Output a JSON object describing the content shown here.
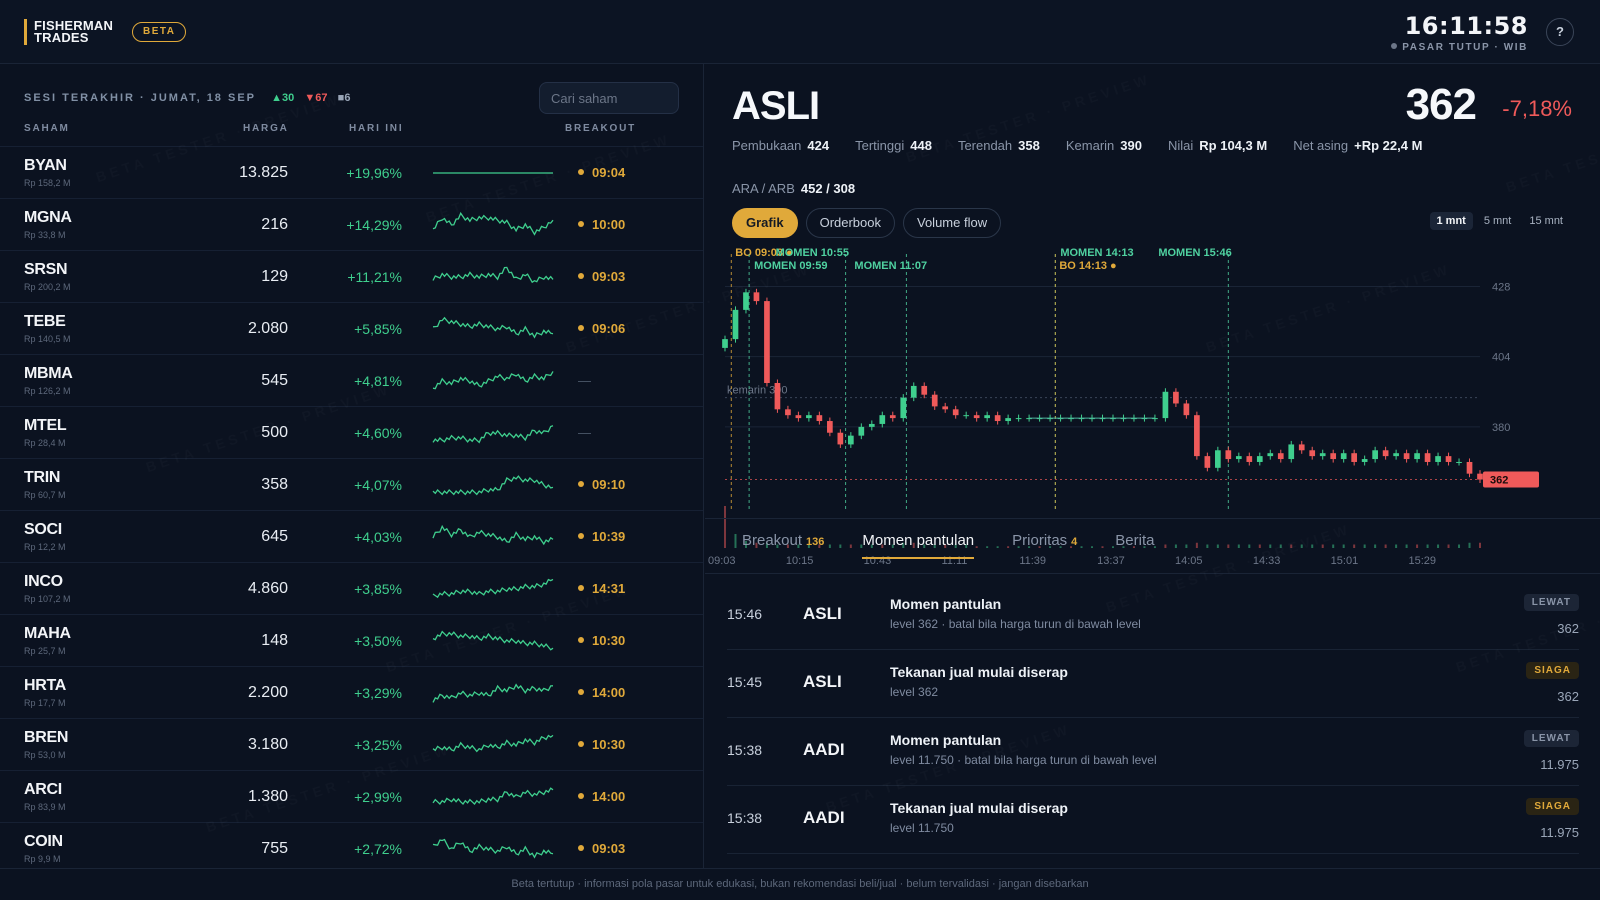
{
  "header": {
    "logo_line1": "FISHERMAN",
    "logo_line2": "TRADES",
    "badge": "BETA",
    "time": "16:11:58",
    "status": "PASAR TUTUP · WIB",
    "help": "?"
  },
  "session": {
    "label": "SESI TERAKHIR · JUMAT, 18 SEP",
    "up_count": "▲30",
    "down_count": "▼67",
    "flat_count": "■6"
  },
  "search": {
    "placeholder": "Cari saham"
  },
  "columns": {
    "stock": "SAHAM",
    "price": "HARGA",
    "today": "HARI INI",
    "breakout": "BREAKOUT"
  },
  "watermark": "BETA TESTER · PREVIEW",
  "stocks": [
    {
      "ticker": "BYAN",
      "value": "Rp 158,2 M",
      "price": "13.825",
      "change": "+19,96%",
      "breakout": "09:04",
      "spark": [
        5,
        5,
        5,
        5,
        5,
        5,
        5,
        5,
        5,
        5,
        5,
        5
      ]
    },
    {
      "ticker": "MGNA",
      "value": "Rp 33,8 M",
      "price": "216",
      "change": "+14,29%",
      "breakout": "10:00",
      "spark": [
        3,
        8,
        5,
        9,
        7,
        8,
        8,
        7,
        6,
        3,
        5,
        2,
        4,
        7
      ]
    },
    {
      "ticker": "SRSN",
      "value": "Rp 200,2 M",
      "price": "129",
      "change": "+11,21%",
      "breakout": "09:03",
      "spark": [
        4,
        6,
        5,
        5,
        6,
        5,
        6,
        5,
        9,
        4,
        6,
        3,
        5,
        4
      ]
    },
    {
      "ticker": "TEBE",
      "value": "Rp 140,5 M",
      "price": "2.080",
      "change": "+5,85%",
      "breakout": "09:06",
      "spark": [
        5,
        9,
        8,
        7,
        6,
        7,
        6,
        5,
        6,
        3,
        5,
        2,
        4,
        3
      ]
    },
    {
      "ticker": "MBMA",
      "value": "Rp 126,2 M",
      "price": "545",
      "change": "+4,81%",
      "breakout": "",
      "spark": [
        2,
        5,
        4,
        6,
        5,
        3,
        5,
        7,
        6,
        8,
        5,
        7,
        6,
        9
      ]
    },
    {
      "ticker": "MTEL",
      "value": "Rp 28,4 M",
      "price": "500",
      "change": "+4,60%",
      "breakout": "",
      "spark": [
        2,
        2,
        3,
        3,
        2,
        2,
        5,
        5,
        4,
        4,
        3,
        6,
        5,
        8
      ]
    },
    {
      "ticker": "TRIN",
      "value": "Rp 60,7 M",
      "price": "358",
      "change": "+4,07%",
      "breakout": "09:10",
      "spark": [
        2,
        2,
        2,
        2,
        2,
        2,
        3,
        3,
        7,
        8,
        7,
        7,
        5,
        4
      ]
    },
    {
      "ticker": "SOCI",
      "value": "Rp 12,2 M",
      "price": "645",
      "change": "+4,03%",
      "breakout": "10:39",
      "spark": [
        5,
        9,
        6,
        8,
        5,
        7,
        6,
        5,
        3,
        6,
        4,
        5,
        3,
        4
      ]
    },
    {
      "ticker": "INCO",
      "value": "Rp 107,2 M",
      "price": "4.860",
      "change": "+3,85%",
      "breakout": "14:31",
      "spark": [
        2,
        3,
        3,
        4,
        4,
        3,
        4,
        4,
        5,
        5,
        6,
        6,
        7,
        9
      ]
    },
    {
      "ticker": "MAHA",
      "value": "Rp 25,7 M",
      "price": "148",
      "change": "+3,50%",
      "breakout": "10:30",
      "spark": [
        6,
        8,
        8,
        7,
        7,
        6,
        7,
        6,
        5,
        5,
        4,
        4,
        3,
        2
      ]
    },
    {
      "ticker": "HRTA",
      "value": "Rp 17,7 M",
      "price": "2.200",
      "change": "+3,29%",
      "breakout": "14:00",
      "spark": [
        2,
        4,
        3,
        5,
        4,
        5,
        4,
        7,
        6,
        8,
        6,
        7,
        6,
        8
      ]
    },
    {
      "ticker": "BREN",
      "value": "Rp 53,0 M",
      "price": "3.180",
      "change": "+3,25%",
      "breakout": "10:30",
      "spark": [
        3,
        4,
        3,
        5,
        4,
        3,
        5,
        4,
        6,
        5,
        7,
        6,
        8,
        9
      ]
    },
    {
      "ticker": "ARCI",
      "value": "Rp 83,9 M",
      "price": "1.380",
      "change": "+2,99%",
      "breakout": "14:00",
      "spark": [
        3,
        3,
        4,
        3,
        3,
        3,
        4,
        4,
        7,
        5,
        7,
        6,
        7,
        8
      ]
    },
    {
      "ticker": "COIN",
      "value": "Rp 9,9 M",
      "price": "755",
      "change": "+2,72%",
      "breakout": "09:03",
      "spark": [
        6,
        9,
        5,
        8,
        4,
        6,
        5,
        4,
        6,
        3,
        5,
        2,
        4,
        3
      ]
    }
  ],
  "detail": {
    "symbol": "ASLI",
    "price": "362",
    "change": "-7,18%",
    "stats": [
      {
        "label": "Pembukaan",
        "value": "424"
      },
      {
        "label": "Tertinggi",
        "value": "448"
      },
      {
        "label": "Terendah",
        "value": "358"
      },
      {
        "label": "Kemarin",
        "value": "390"
      },
      {
        "label": "Nilai",
        "value": "Rp 104,3 M"
      },
      {
        "label": "Net asing",
        "value": "+Rp 22,4 M"
      }
    ],
    "ara_label": "ARA / ARB",
    "ara_value": "452 / 308",
    "chart_tabs": [
      "Grafik",
      "Orderbook",
      "Volume flow"
    ],
    "timeframes": [
      "1 mnt",
      "5 mnt",
      "15 mnt"
    ]
  },
  "chart_data": {
    "type": "line",
    "x_ticks": [
      "09:03",
      "10:15",
      "10:43",
      "11:11",
      "11:39",
      "13:37",
      "14:05",
      "14:33",
      "15:01",
      "15:29"
    ],
    "y_ticks": [
      428,
      404,
      380
    ],
    "ylim": [
      355,
      435
    ],
    "reference": {
      "label": "kemarin 390",
      "value": 390
    },
    "last_price": {
      "label": "362",
      "value": 362
    },
    "markers": [
      {
        "label": "BO 09:03",
        "t": 0.6
      },
      {
        "label": "MOMEN 09:59",
        "t": 2.3
      },
      {
        "label": "MOMEN 10:55",
        "t": 11.5
      },
      {
        "label": "MOMEN 11:07",
        "t": 17.3
      },
      {
        "label": "MOMEN 14:13",
        "t": 31.5
      },
      {
        "label": "BO 14:13",
        "t": 31.5
      },
      {
        "label": "MOMEN 15:46",
        "t": 48.0
      }
    ],
    "series": [
      {
        "values": [
          410,
          420,
          426,
          423,
          395,
          386,
          384,
          383,
          384,
          382,
          378,
          374,
          377,
          380,
          381,
          384,
          383,
          390,
          394,
          391,
          387,
          386,
          384,
          384,
          383,
          384,
          382,
          383,
          383,
          383,
          383,
          383,
          383,
          383,
          383,
          383,
          383,
          383,
          383,
          383,
          383,
          383,
          392,
          388,
          384,
          370,
          366,
          372,
          369,
          370,
          368,
          370,
          371,
          369,
          374,
          372,
          370,
          371,
          369,
          371,
          368,
          369,
          372,
          370,
          371,
          369,
          371,
          368,
          370,
          368,
          368,
          364,
          362
        ]
      }
    ],
    "volume": [
      24,
      8,
      4,
      3,
      3,
      2,
      2,
      2,
      2,
      2,
      2,
      2,
      2,
      2,
      2,
      2,
      2,
      3,
      3,
      2,
      2,
      2,
      2,
      2,
      1,
      1,
      1,
      1,
      1,
      1,
      1,
      1,
      1,
      1,
      1,
      1,
      1,
      1,
      1,
      1,
      1,
      1,
      2,
      2,
      2,
      3,
      2,
      2,
      2,
      2,
      2,
      2,
      2,
      2,
      2,
      2,
      2,
      2,
      2,
      2,
      2,
      2,
      2,
      2,
      2,
      2,
      2,
      2,
      2,
      2,
      2,
      3,
      3
    ]
  },
  "events_tabs": [
    {
      "label": "Breakout",
      "count": "136"
    },
    {
      "label": "Momen pantulan",
      "count": ""
    },
    {
      "label": "Prioritas",
      "count": "4"
    },
    {
      "label": "Berita",
      "count": ""
    }
  ],
  "events": [
    {
      "time": "15:46",
      "symbol": "ASLI",
      "title": "Momen pantulan",
      "sub": "level 362 · batal bila harga turun di bawah level",
      "badge": "LEWAT",
      "badge_type": "lewat",
      "value": "362"
    },
    {
      "time": "15:45",
      "symbol": "ASLI",
      "title": "Tekanan jual mulai diserap",
      "sub": "level 362",
      "badge": "SIAGA",
      "badge_type": "siaga",
      "value": "362"
    },
    {
      "time": "15:38",
      "symbol": "AADI",
      "title": "Momen pantulan",
      "sub": "level 11.750 · batal bila harga turun di bawah level",
      "badge": "LEWAT",
      "badge_type": "lewat",
      "value": "11.975"
    },
    {
      "time": "15:38",
      "symbol": "AADI",
      "title": "Tekanan jual mulai diserap",
      "sub": "level 11.750",
      "badge": "SIAGA",
      "badge_type": "siaga",
      "value": "11.975"
    }
  ],
  "footer": "Beta tertutup · informasi pola pasar untuk edukasi, bukan rekomendasi beli/jual · belum tervalidasi · jangan disebarkan",
  "colors": {
    "accent": "#e0a93a",
    "up": "#3fcf8e",
    "down": "#ef5a5a",
    "marker_green": "#4fd1a0"
  }
}
